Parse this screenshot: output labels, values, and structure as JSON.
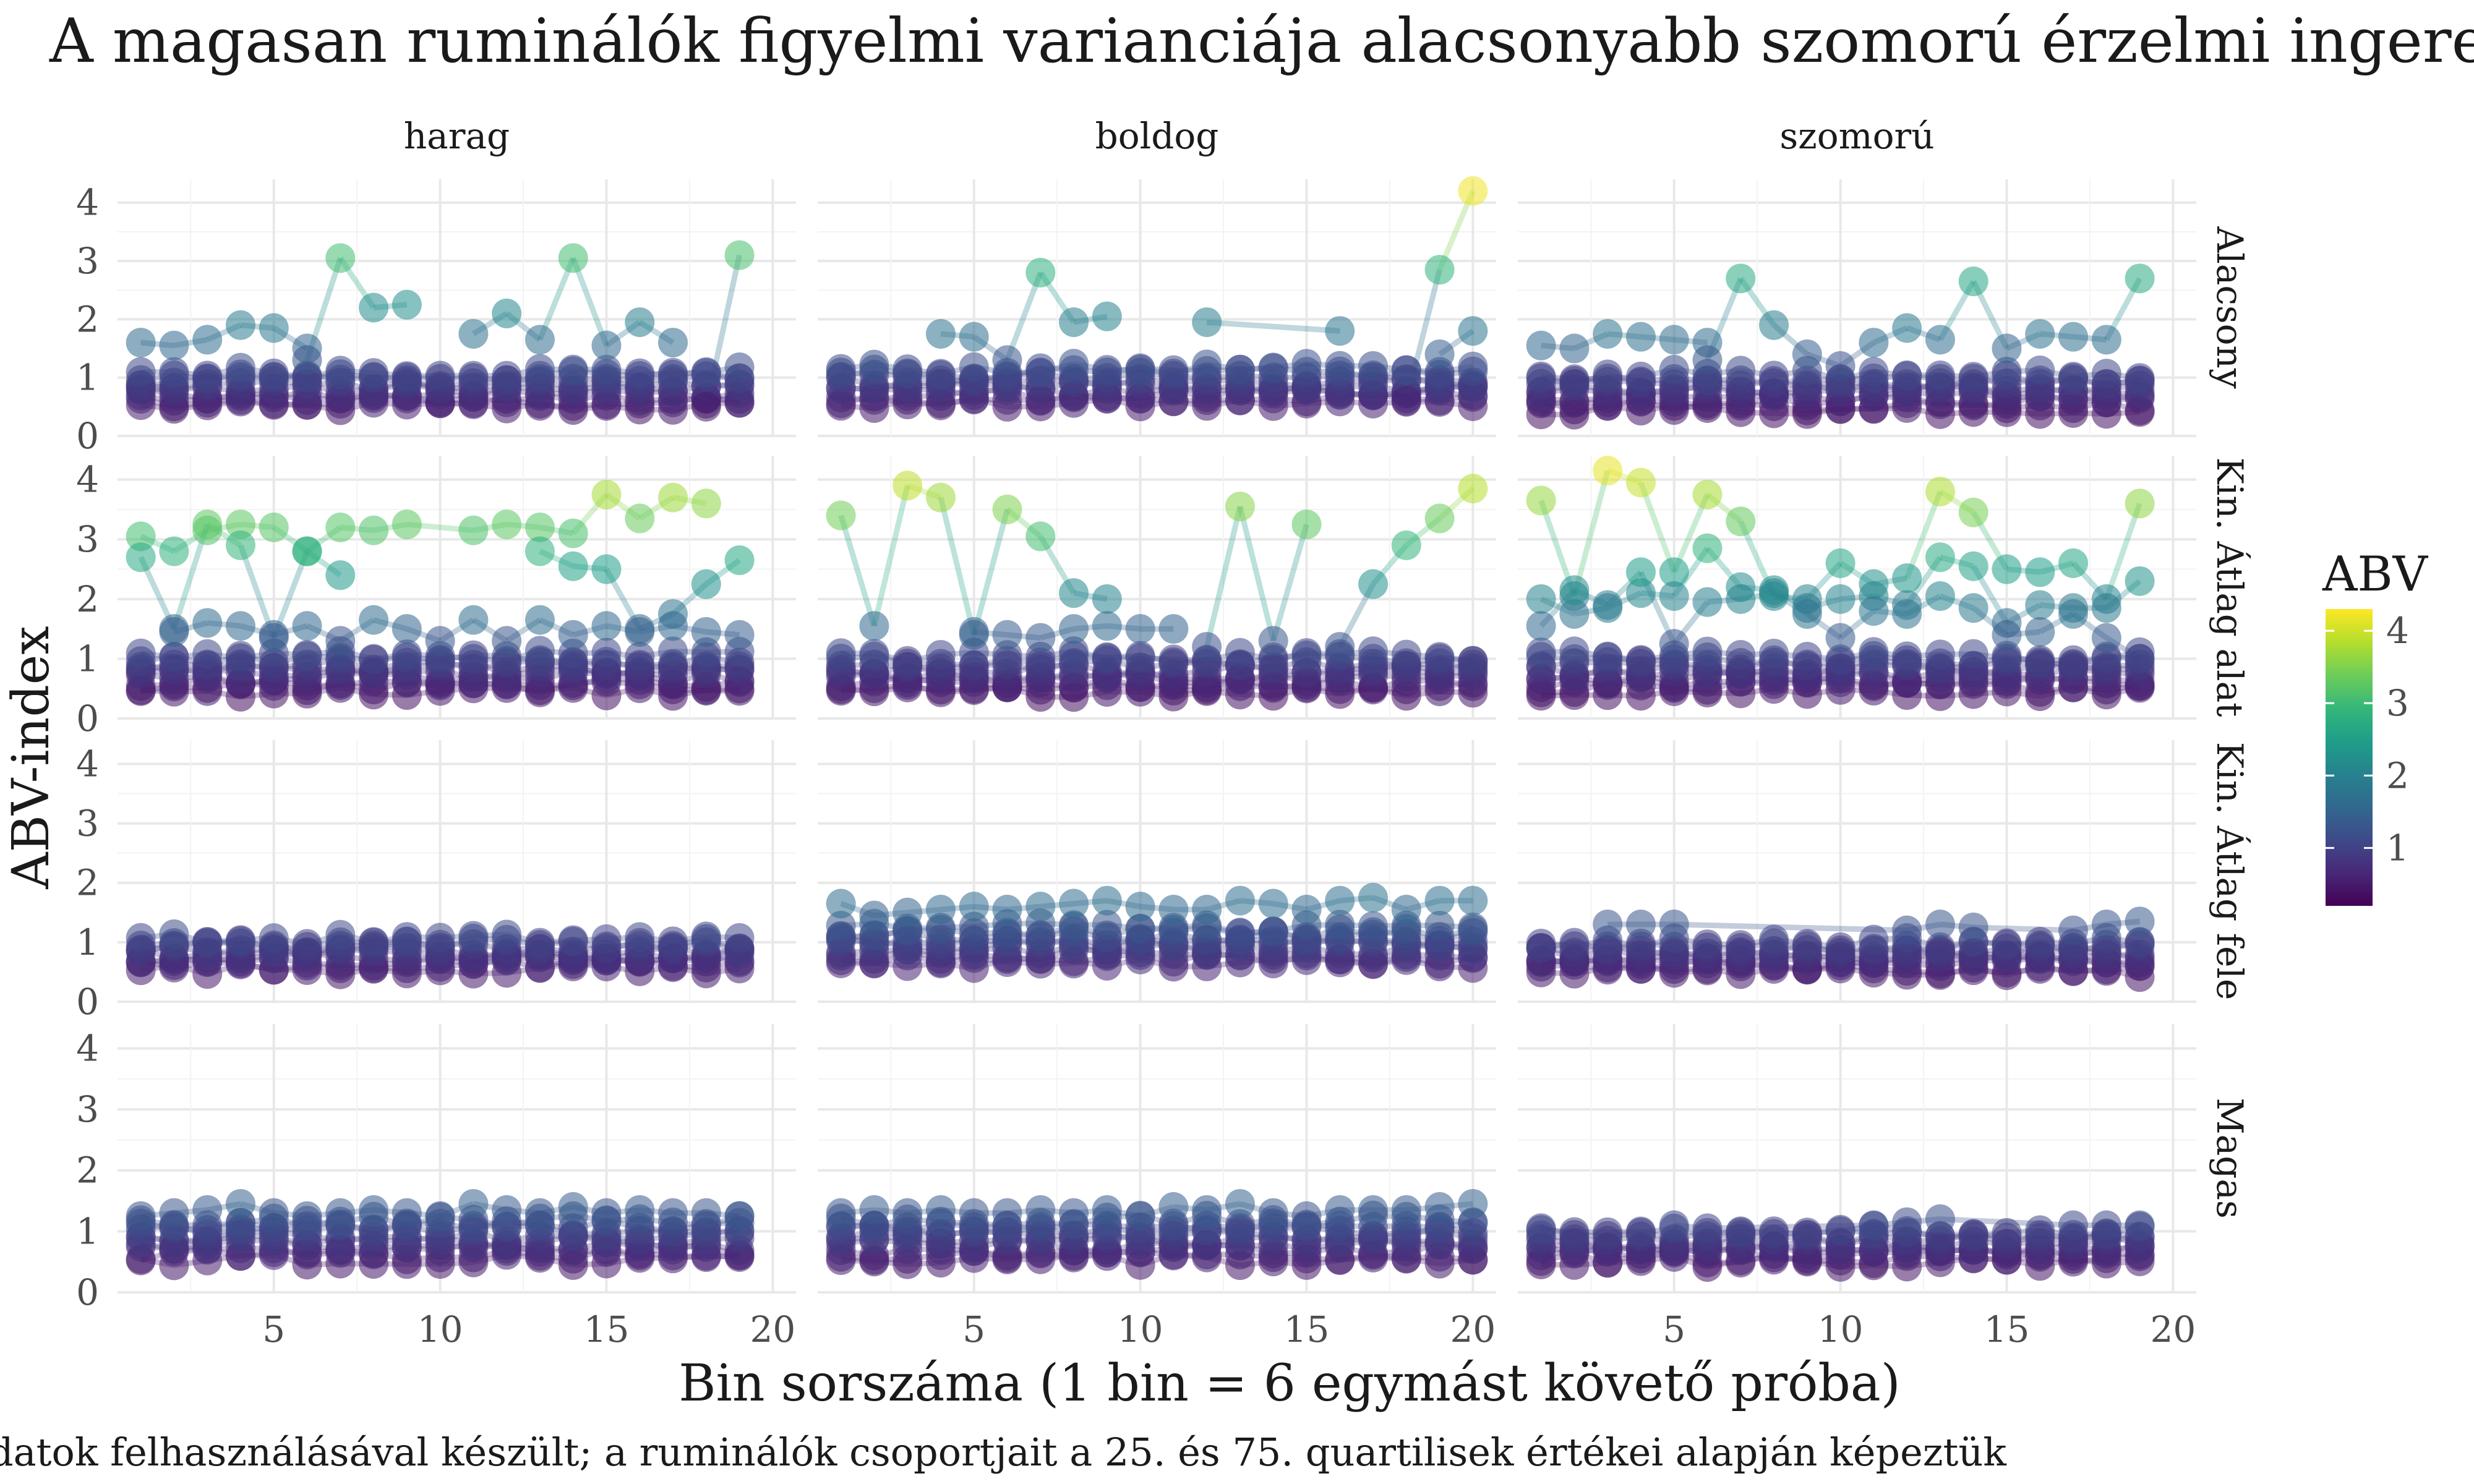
{
  "chart_data": {
    "type": "scatter",
    "title": "A magasan ruminálók figyelmi varianciája alacsonyabb szomorú érzelmi ingerekre",
    "xlabel": "Bin sorszáma (1 bin = 6 egymást követő próba)",
    "ylabel": "ABV-index",
    "caption": "adatok felhasználásával készült; a ruminálók csoportjait a 25. és 75. quartilisek értékei alapján képeztük",
    "xlim": [
      0.3,
      20.7
    ],
    "ylim": [
      0,
      4.4
    ],
    "x_ticks": [
      5,
      10,
      15,
      20
    ],
    "y_ticks": [
      0,
      1,
      2,
      3,
      4
    ],
    "x_tick_labels": [
      "5",
      "10",
      "15",
      "20"
    ],
    "y_tick_labels": [
      "0",
      "1",
      "2",
      "3",
      "4"
    ],
    "column_facets": [
      "harag",
      "boldog",
      "szomorú"
    ],
    "row_facets": [
      "Alacsony",
      "Kin. Átlag alatt",
      "Kin. Átlag felett",
      "Magas"
    ],
    "row_facet_labels_visible": [
      "Alacsony",
      "Kin. Átlag alat",
      "Kin. Átlag fele",
      "Magas"
    ],
    "grid": true,
    "legend": {
      "title": "ABV",
      "position": "right",
      "ticks": [
        1,
        2,
        3,
        4
      ],
      "tick_labels": [
        "1",
        "2",
        "3",
        "4"
      ],
      "range": [
        0.2,
        4.3
      ],
      "colors": [
        "#440154",
        "#482878",
        "#3E4A89",
        "#31688E",
        "#26828E",
        "#1F9E89",
        "#35B779",
        "#6DCD59",
        "#B4DE2C",
        "#FDE725"
      ]
    },
    "panels": [
      {
        "col": "harag",
        "row": "Alacsony",
        "x_range": [
          1,
          19
        ],
        "base": {
          "center": 0.8,
          "spread": 0.3
        },
        "highlights": [
          {
            "name": "a",
            "x": [
              1,
              2,
              3,
              4,
              5,
              6
            ],
            "y": [
              1.6,
              1.55,
              1.65,
              1.9,
              1.85,
              1.5
            ]
          },
          {
            "name": "b",
            "x": [
              6,
              7,
              8,
              9
            ],
            "y": [
              1.3,
              3.05,
              2.2,
              2.25
            ]
          },
          {
            "name": "c",
            "x": [
              11,
              12,
              13,
              14,
              15,
              16,
              17
            ],
            "y": [
              1.75,
              2.1,
              1.65,
              3.05,
              1.55,
              1.95,
              1.6
            ]
          },
          {
            "name": "d",
            "x": [
              18,
              19
            ],
            "y": [
              0.5,
              3.1
            ]
          }
        ]
      },
      {
        "col": "boldog",
        "row": "Alacsony",
        "x_range": [
          1,
          20
        ],
        "base": {
          "center": 0.85,
          "spread": 0.3
        },
        "highlights": [
          {
            "name": "a",
            "x": [
              4,
              5,
              6,
              7,
              8,
              9
            ],
            "y": [
              1.75,
              1.7,
              1.3,
              2.8,
              1.95,
              2.05
            ]
          },
          {
            "name": "b",
            "x": [
              12,
              16
            ],
            "y": [
              1.95,
              1.8
            ]
          },
          {
            "name": "c",
            "x": [
              18,
              19,
              20
            ],
            "y": [
              0.6,
              2.85,
              4.2
            ]
          },
          {
            "name": "d",
            "x": [
              19,
              20
            ],
            "y": [
              1.4,
              1.8
            ]
          }
        ]
      },
      {
        "col": "szomorú",
        "row": "Alacsony",
        "x_range": [
          1,
          19
        ],
        "base": {
          "center": 0.75,
          "spread": 0.3
        },
        "highlights": [
          {
            "name": "a",
            "x": [
              1,
              2,
              3,
              4,
              5,
              6
            ],
            "y": [
              1.55,
              1.5,
              1.75,
              1.7,
              1.65,
              1.6
            ]
          },
          {
            "name": "b",
            "x": [
              6,
              7,
              8,
              9,
              10,
              11,
              12,
              13,
              14,
              15,
              16,
              17,
              18,
              19
            ],
            "y": [
              1.3,
              2.7,
              1.9,
              1.4,
              1.2,
              1.6,
              1.85,
              1.65,
              2.65,
              1.5,
              1.75,
              1.7,
              1.65,
              2.7
            ]
          }
        ]
      },
      {
        "col": "harag",
        "row": "Kin. Átlag alatt",
        "x_range": [
          1,
          19
        ],
        "base": {
          "center": 0.75,
          "spread": 0.3
        },
        "highlights": [
          {
            "name": "a",
            "x": [
              1,
              2,
              3,
              4,
              5,
              6,
              7,
              8,
              9,
              11,
              12,
              13,
              14,
              15,
              16,
              17,
              18
            ],
            "y": [
              3.05,
              2.8,
              3.15,
              3.25,
              3.2,
              2.8,
              3.2,
              3.15,
              3.25,
              3.15,
              3.25,
              3.2,
              3.1,
              3.75,
              3.35,
              3.7,
              3.6
            ]
          },
          {
            "name": "b",
            "x": [
              1,
              2,
              3,
              4,
              5,
              6,
              7
            ],
            "y": [
              2.7,
              1.5,
              3.25,
              2.9,
              1.35,
              2.8,
              2.4
            ]
          },
          {
            "name": "c",
            "x": [
              13,
              14,
              15,
              16,
              17,
              18,
              19
            ],
            "y": [
              2.8,
              2.55,
              2.5,
              1.5,
              1.75,
              2.25,
              2.65
            ]
          },
          {
            "name": "d",
            "x": [
              2,
              3,
              4,
              5,
              6,
              7,
              8,
              9,
              10,
              11,
              12,
              13,
              14,
              15,
              16,
              17,
              18,
              19
            ],
            "y": [
              1.45,
              1.6,
              1.55,
              1.4,
              1.55,
              1.3,
              1.65,
              1.5,
              1.3,
              1.65,
              1.3,
              1.65,
              1.4,
              1.55,
              1.45,
              1.55,
              1.45,
              1.4
            ]
          }
        ]
      },
      {
        "col": "boldog",
        "row": "Kin. Átlag alatt",
        "x_range": [
          1,
          20
        ],
        "base": {
          "center": 0.75,
          "spread": 0.3
        },
        "highlights": [
          {
            "name": "a",
            "x": [
              1,
              2,
              3,
              4,
              5,
              6,
              7,
              8,
              9
            ],
            "y": [
              3.4,
              1.55,
              3.9,
              3.7,
              1.4,
              3.5,
              3.05,
              2.1,
              2.0
            ]
          },
          {
            "name": "b",
            "x": [
              12,
              13,
              14,
              15
            ],
            "y": [
              1.2,
              3.55,
              1.3,
              3.25
            ]
          },
          {
            "name": "c",
            "x": [
              16,
              17,
              18,
              19,
              20
            ],
            "y": [
              1.2,
              2.25,
              2.9,
              3.35,
              3.85
            ]
          },
          {
            "name": "d",
            "x": [
              5,
              6,
              7,
              8,
              9,
              10,
              11
            ],
            "y": [
              1.45,
              1.4,
              1.35,
              1.5,
              1.55,
              1.5,
              1.5
            ]
          }
        ]
      },
      {
        "col": "szomorú",
        "row": "Kin. Átlag alatt",
        "x_range": [
          1,
          19
        ],
        "base": {
          "center": 0.75,
          "spread": 0.3
        },
        "highlights": [
          {
            "name": "a",
            "x": [
              1,
              2,
              3,
              4,
              5,
              6,
              7,
              8,
              9,
              10,
              11,
              12,
              13,
              14,
              15,
              16,
              17,
              18,
              19
            ],
            "y": [
              3.65,
              2.05,
              4.15,
              3.95,
              2.45,
              3.75,
              3.3,
              2.05,
              2.0,
              2.6,
              2.25,
              2.35,
              3.8,
              3.45,
              2.5,
              2.45,
              2.6,
              2.0,
              3.6
            ]
          },
          {
            "name": "b",
            "x": [
              1,
              2,
              3,
              4,
              5,
              6,
              7,
              8,
              9,
              10,
              11,
              12,
              13,
              14,
              15,
              16,
              17,
              18,
              19
            ],
            "y": [
              2.0,
              1.75,
              1.85,
              2.1,
              2.05,
              2.85,
              2.2,
              2.15,
              1.85,
              2.0,
              2.05,
              1.9,
              2.7,
              2.55,
              1.6,
              1.9,
              1.85,
              1.85,
              2.3
            ]
          },
          {
            "name": "c",
            "x": [
              1,
              2,
              3,
              4,
              5,
              6,
              7,
              8,
              9,
              10,
              11,
              12,
              13,
              14,
              15,
              16,
              17,
              18,
              19
            ],
            "y": [
              1.55,
              2.15,
              1.9,
              2.45,
              1.25,
              1.95,
              2.0,
              2.1,
              1.75,
              1.35,
              1.8,
              1.75,
              2.05,
              1.85,
              1.4,
              1.45,
              1.75,
              1.35,
              1.0
            ]
          }
        ]
      },
      {
        "col": "harag",
        "row": "Kin. Átlag felett",
        "x_range": [
          1,
          19
        ],
        "base": {
          "center": 0.8,
          "spread": 0.25
        },
        "highlights": []
      },
      {
        "col": "boldog",
        "row": "Kin. Átlag felett",
        "x_range": [
          1,
          20
        ],
        "base": {
          "center": 0.95,
          "spread": 0.3
        },
        "highlights": [
          {
            "name": "a",
            "x": [
              1,
              2,
              3,
              4,
              5,
              6,
              7,
              8,
              9,
              10,
              11,
              12,
              13,
              14,
              15,
              16,
              17,
              18,
              19,
              20
            ],
            "y": [
              1.65,
              1.45,
              1.5,
              1.55,
              1.6,
              1.55,
              1.6,
              1.65,
              1.7,
              1.6,
              1.55,
              1.55,
              1.7,
              1.65,
              1.55,
              1.7,
              1.75,
              1.55,
              1.7,
              1.7
            ]
          }
        ]
      },
      {
        "col": "szomorú",
        "row": "Kin. Átlag felett",
        "x_range": [
          1,
          19
        ],
        "base": {
          "center": 0.75,
          "spread": 0.25
        },
        "highlights": [
          {
            "name": "a",
            "x": [
              3,
              4,
              5,
              12,
              13,
              14,
              17,
              18,
              19
            ],
            "y": [
              1.3,
              1.3,
              1.3,
              1.2,
              1.3,
              1.25,
              1.2,
              1.3,
              1.35
            ]
          }
        ]
      },
      {
        "col": "harag",
        "row": "Magas",
        "x_range": [
          1,
          19
        ],
        "base": {
          "center": 0.85,
          "spread": 0.32
        },
        "highlights": [
          {
            "name": "a",
            "x": [
              1,
              2,
              3,
              4,
              5,
              6,
              7,
              8,
              9,
              10,
              11,
              12,
              13,
              14,
              15,
              16,
              17,
              18,
              19
            ],
            "y": [
              1.25,
              1.3,
              1.35,
              1.45,
              1.3,
              1.25,
              1.3,
              1.35,
              1.3,
              1.25,
              1.45,
              1.35,
              1.3,
              1.4,
              1.3,
              1.35,
              1.3,
              1.3,
              1.25
            ]
          }
        ]
      },
      {
        "col": "boldog",
        "row": "Magas",
        "x_range": [
          1,
          20
        ],
        "base": {
          "center": 0.85,
          "spread": 0.32
        },
        "highlights": [
          {
            "name": "a",
            "x": [
              1,
              2,
              3,
              4,
              5,
              6,
              7,
              8,
              9,
              10,
              11,
              12,
              13,
              14,
              15,
              16,
              17,
              18,
              19,
              20
            ],
            "y": [
              1.3,
              1.35,
              1.3,
              1.35,
              1.3,
              1.3,
              1.35,
              1.3,
              1.35,
              1.25,
              1.4,
              1.35,
              1.45,
              1.3,
              1.25,
              1.35,
              1.35,
              1.35,
              1.4,
              1.45
            ]
          }
        ]
      },
      {
        "col": "szomorú",
        "row": "Magas",
        "x_range": [
          1,
          19
        ],
        "base": {
          "center": 0.75,
          "spread": 0.25
        },
        "highlights": [
          {
            "name": "a",
            "x": [
              5,
              6,
              11,
              12,
              13,
              17,
              18,
              19
            ],
            "y": [
              1.1,
              1.05,
              1.1,
              1.15,
              1.2,
              1.1,
              1.1,
              1.1
            ]
          }
        ]
      }
    ]
  }
}
